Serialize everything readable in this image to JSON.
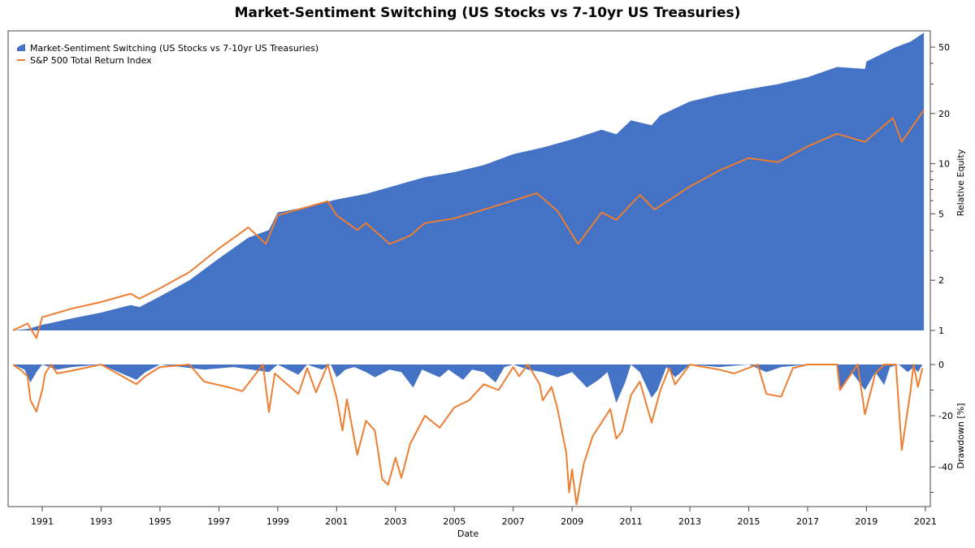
{
  "chart_data": [
    {
      "type": "area",
      "title": "Market-Sentiment Switching (US Stocks vs 7-10yr US Treasuries)",
      "xlabel": "Date",
      "ylabel": "Relative Equity",
      "yscale": "log",
      "ylim": [
        1,
        62
      ],
      "xlim": [
        1990.0,
        2021.1
      ],
      "yticks": [
        1,
        2,
        5,
        10,
        20,
        50
      ],
      "xticks": [
        "1991",
        "1993",
        "1995",
        "1997",
        "1999",
        "2001",
        "2003",
        "2005",
        "2007",
        "2009",
        "2011",
        "2013",
        "2015",
        "2017",
        "2019",
        "2021"
      ],
      "legend_position": "top-left",
      "grid": false,
      "series": [
        {
          "name": "Market-Sentiment Switching (US Stocks vs 7-10yr US Treasuries)",
          "kind": "area",
          "color": "#4472C4",
          "points": [
            [
              1990.0,
              1.0
            ],
            [
              1990.5,
              1.02
            ],
            [
              1991,
              1.08
            ],
            [
              1992,
              1.18
            ],
            [
              1993,
              1.28
            ],
            [
              1994,
              1.42
            ],
            [
              1994.3,
              1.38
            ],
            [
              1995,
              1.6
            ],
            [
              1996,
              2.0
            ],
            [
              1997,
              2.7
            ],
            [
              1998,
              3.6
            ],
            [
              1998.7,
              4.0
            ],
            [
              1999,
              5.1
            ],
            [
              2000,
              5.5
            ],
            [
              2001,
              6.1
            ],
            [
              2002,
              6.6
            ],
            [
              2003,
              7.4
            ],
            [
              2004,
              8.3
            ],
            [
              2005,
              8.9
            ],
            [
              2006,
              9.8
            ],
            [
              2007,
              11.4
            ],
            [
              2008,
              12.5
            ],
            [
              2009,
              14.0
            ],
            [
              2010,
              16.0
            ],
            [
              2010.5,
              15.0
            ],
            [
              2011,
              18.2
            ],
            [
              2011.7,
              17.0
            ],
            [
              2012,
              19.5
            ],
            [
              2013,
              23.6
            ],
            [
              2014,
              26
            ],
            [
              2015,
              28
            ],
            [
              2016,
              30
            ],
            [
              2017,
              33
            ],
            [
              2018,
              38
            ],
            [
              2018.95,
              37
            ],
            [
              2019,
              41
            ],
            [
              2020,
              50
            ],
            [
              2020.5,
              54
            ],
            [
              2020.95,
              61
            ]
          ]
        },
        {
          "name": "S&P 500 Total Return Index",
          "kind": "line",
          "color": "#ED7D31",
          "points": [
            [
              1990.0,
              1.0
            ],
            [
              1990.5,
              1.1
            ],
            [
              1990.8,
              0.9
            ],
            [
              1991,
              1.2
            ],
            [
              1992,
              1.35
            ],
            [
              1993,
              1.48
            ],
            [
              1994,
              1.66
            ],
            [
              1994.3,
              1.55
            ],
            [
              1995,
              1.79
            ],
            [
              1996,
              2.24
            ],
            [
              1997,
              3.1
            ],
            [
              1998,
              4.15
            ],
            [
              1998.6,
              3.3
            ],
            [
              1999,
              4.9
            ],
            [
              2000.7,
              5.95
            ],
            [
              2001,
              4.9
            ],
            [
              2001.7,
              4.0
            ],
            [
              2002,
              4.4
            ],
            [
              2002.8,
              3.3
            ],
            [
              2003.5,
              3.7
            ],
            [
              2004,
              4.4
            ],
            [
              2005,
              4.7
            ],
            [
              2006,
              5.3
            ],
            [
              2007.8,
              6.65
            ],
            [
              2008.5,
              5.2
            ],
            [
              2009.2,
              3.3
            ],
            [
              2010,
              5.1
            ],
            [
              2010.5,
              4.6
            ],
            [
              2011.3,
              6.5
            ],
            [
              2011.8,
              5.3
            ],
            [
              2013,
              7.3
            ],
            [
              2014,
              9.1
            ],
            [
              2015,
              10.8
            ],
            [
              2016,
              10.2
            ],
            [
              2017,
              12.7
            ],
            [
              2018,
              15.1
            ],
            [
              2018.95,
              13.5
            ],
            [
              2019.9,
              18.8
            ],
            [
              2020.2,
              13.5
            ],
            [
              2020.95,
              21
            ]
          ]
        }
      ]
    },
    {
      "type": "area",
      "xlabel": "Date",
      "ylabel": "Drawdown [%]",
      "ylim": [
        -55.5,
        0
      ],
      "yticks": [
        0,
        -20,
        -40
      ],
      "grid": false,
      "series": [
        {
          "name": "Market-Sentiment Switching (US Stocks vs 7-10yr US Treasuries)",
          "kind": "area",
          "color": "#4472C4",
          "points": [
            [
              1990.0,
              0
            ],
            [
              1990.4,
              -2
            ],
            [
              1990.6,
              -7
            ],
            [
              1990.8,
              -3
            ],
            [
              1991,
              0
            ],
            [
              1991.5,
              -2
            ],
            [
              1992,
              -1
            ],
            [
              1993,
              0
            ],
            [
              1994.2,
              -6
            ],
            [
              1994.5,
              -3
            ],
            [
              1995,
              0
            ],
            [
              1996.5,
              -2
            ],
            [
              1997.5,
              -1
            ],
            [
              1998.7,
              -3
            ],
            [
              1999,
              0
            ],
            [
              1999.7,
              -4
            ],
            [
              2000,
              0
            ],
            [
              2000.5,
              -2
            ],
            [
              2000.8,
              0
            ],
            [
              2001,
              -5
            ],
            [
              2001.3,
              -2
            ],
            [
              2001.6,
              -1
            ],
            [
              2002,
              -3
            ],
            [
              2002.3,
              -5
            ],
            [
              2002.8,
              -2
            ],
            [
              2003.2,
              -3
            ],
            [
              2003.6,
              -9
            ],
            [
              2003.9,
              -2
            ],
            [
              2004.5,
              -5
            ],
            [
              2004.8,
              -2
            ],
            [
              2005.3,
              -6
            ],
            [
              2005.6,
              -2
            ],
            [
              2006,
              -3
            ],
            [
              2006.4,
              -7
            ],
            [
              2006.7,
              -1
            ],
            [
              2007,
              0
            ],
            [
              2007.5,
              -2
            ],
            [
              2008,
              -3
            ],
            [
              2008.5,
              -5
            ],
            [
              2009,
              -3
            ],
            [
              2009.5,
              -9
            ],
            [
              2009.9,
              -6
            ],
            [
              2010.2,
              -3
            ],
            [
              2010.5,
              -15
            ],
            [
              2010.8,
              -7
            ],
            [
              2011,
              0
            ],
            [
              2011.3,
              -3
            ],
            [
              2011.7,
              -13
            ],
            [
              2011.9,
              -10
            ],
            [
              2012.2,
              -1
            ],
            [
              2012.5,
              -5
            ],
            [
              2013,
              0
            ],
            [
              2014,
              -1
            ],
            [
              2015,
              0
            ],
            [
              2015.6,
              -3
            ],
            [
              2016.1,
              -1
            ],
            [
              2017,
              0
            ],
            [
              2018,
              0
            ],
            [
              2018.1,
              -10
            ],
            [
              2018.5,
              -3
            ],
            [
              2018.95,
              -10
            ],
            [
              2019.3,
              -3
            ],
            [
              2019.6,
              -8
            ],
            [
              2019.8,
              -1
            ],
            [
              2020.1,
              0
            ],
            [
              2020.4,
              -3
            ],
            [
              2020.6,
              -1
            ],
            [
              2020.75,
              -3
            ],
            [
              2020.9,
              0
            ]
          ]
        },
        {
          "name": "S&P 500 Total Return Index",
          "kind": "line",
          "color": "#ED7D31",
          "points": [
            [
              1990.0,
              0
            ],
            [
              1990.3,
              -2.4
            ],
            [
              1990.5,
              -4.6
            ],
            [
              1990.6,
              -14
            ],
            [
              1990.8,
              -18.4
            ],
            [
              1991,
              -10
            ],
            [
              1991.1,
              -3.5
            ],
            [
              1991.3,
              0
            ],
            [
              1991.5,
              -3.5
            ],
            [
              1992,
              -2.4
            ],
            [
              1993,
              0
            ],
            [
              1994.2,
              -7.7
            ],
            [
              1994.5,
              -4.6
            ],
            [
              1995,
              -1
            ],
            [
              1996,
              0
            ],
            [
              1996.5,
              -6.7
            ],
            [
              1997.3,
              -8.8
            ],
            [
              1997.8,
              -10.4
            ],
            [
              1998.5,
              0
            ],
            [
              1998.7,
              -18.6
            ],
            [
              1998.9,
              -3.5
            ],
            [
              1999.7,
              -11.5
            ],
            [
              2000,
              -1.4
            ],
            [
              2000.3,
              -10.9
            ],
            [
              2000.7,
              0
            ],
            [
              2001,
              -13
            ],
            [
              2001.2,
              -25.8
            ],
            [
              2001.35,
              -13.6
            ],
            [
              2001.7,
              -35.3
            ],
            [
              2002,
              -22
            ],
            [
              2002.3,
              -25.8
            ],
            [
              2002.55,
              -44.9
            ],
            [
              2002.75,
              -47
            ],
            [
              2003,
              -36.4
            ],
            [
              2003.2,
              -44.3
            ],
            [
              2003.5,
              -31
            ],
            [
              2004,
              -20
            ],
            [
              2004.5,
              -24.7
            ],
            [
              2005,
              -16.8
            ],
            [
              2005.5,
              -14
            ],
            [
              2006,
              -7.7
            ],
            [
              2006.5,
              -10
            ],
            [
              2007,
              -1
            ],
            [
              2007.2,
              -4.6
            ],
            [
              2007.5,
              0
            ],
            [
              2007.9,
              -7.8
            ],
            [
              2008,
              -14
            ],
            [
              2008.3,
              -8.8
            ],
            [
              2008.5,
              -17
            ],
            [
              2008.8,
              -34.5
            ],
            [
              2008.9,
              -50
            ],
            [
              2009,
              -41
            ],
            [
              2009.15,
              -54.7
            ],
            [
              2009.4,
              -38.7
            ],
            [
              2009.7,
              -28
            ],
            [
              2010,
              -22.7
            ],
            [
              2010.3,
              -17.4
            ],
            [
              2010.5,
              -29
            ],
            [
              2010.7,
              -26
            ],
            [
              2011,
              -12
            ],
            [
              2011.3,
              -6.7
            ],
            [
              2011.7,
              -22.7
            ],
            [
              2011.8,
              -18.5
            ],
            [
              2012,
              -10
            ],
            [
              2012.3,
              -1.4
            ],
            [
              2012.5,
              -7.8
            ],
            [
              2013,
              0
            ],
            [
              2014,
              -2
            ],
            [
              2014.5,
              -3.5
            ],
            [
              2015.3,
              0
            ],
            [
              2015.6,
              -11.5
            ],
            [
              2016.1,
              -12.6
            ],
            [
              2016.5,
              -1.4
            ],
            [
              2017,
              0
            ],
            [
              2018,
              0
            ],
            [
              2018.1,
              -10
            ],
            [
              2018.7,
              0
            ],
            [
              2018.95,
              -19.5
            ],
            [
              2019.3,
              -3.5
            ],
            [
              2019.6,
              0
            ],
            [
              2020,
              0
            ],
            [
              2020.2,
              -33.4
            ],
            [
              2020.5,
              -10
            ],
            [
              2020.6,
              0
            ],
            [
              2020.75,
              -8.8
            ],
            [
              2020.9,
              -1.4
            ]
          ]
        }
      ]
    }
  ]
}
